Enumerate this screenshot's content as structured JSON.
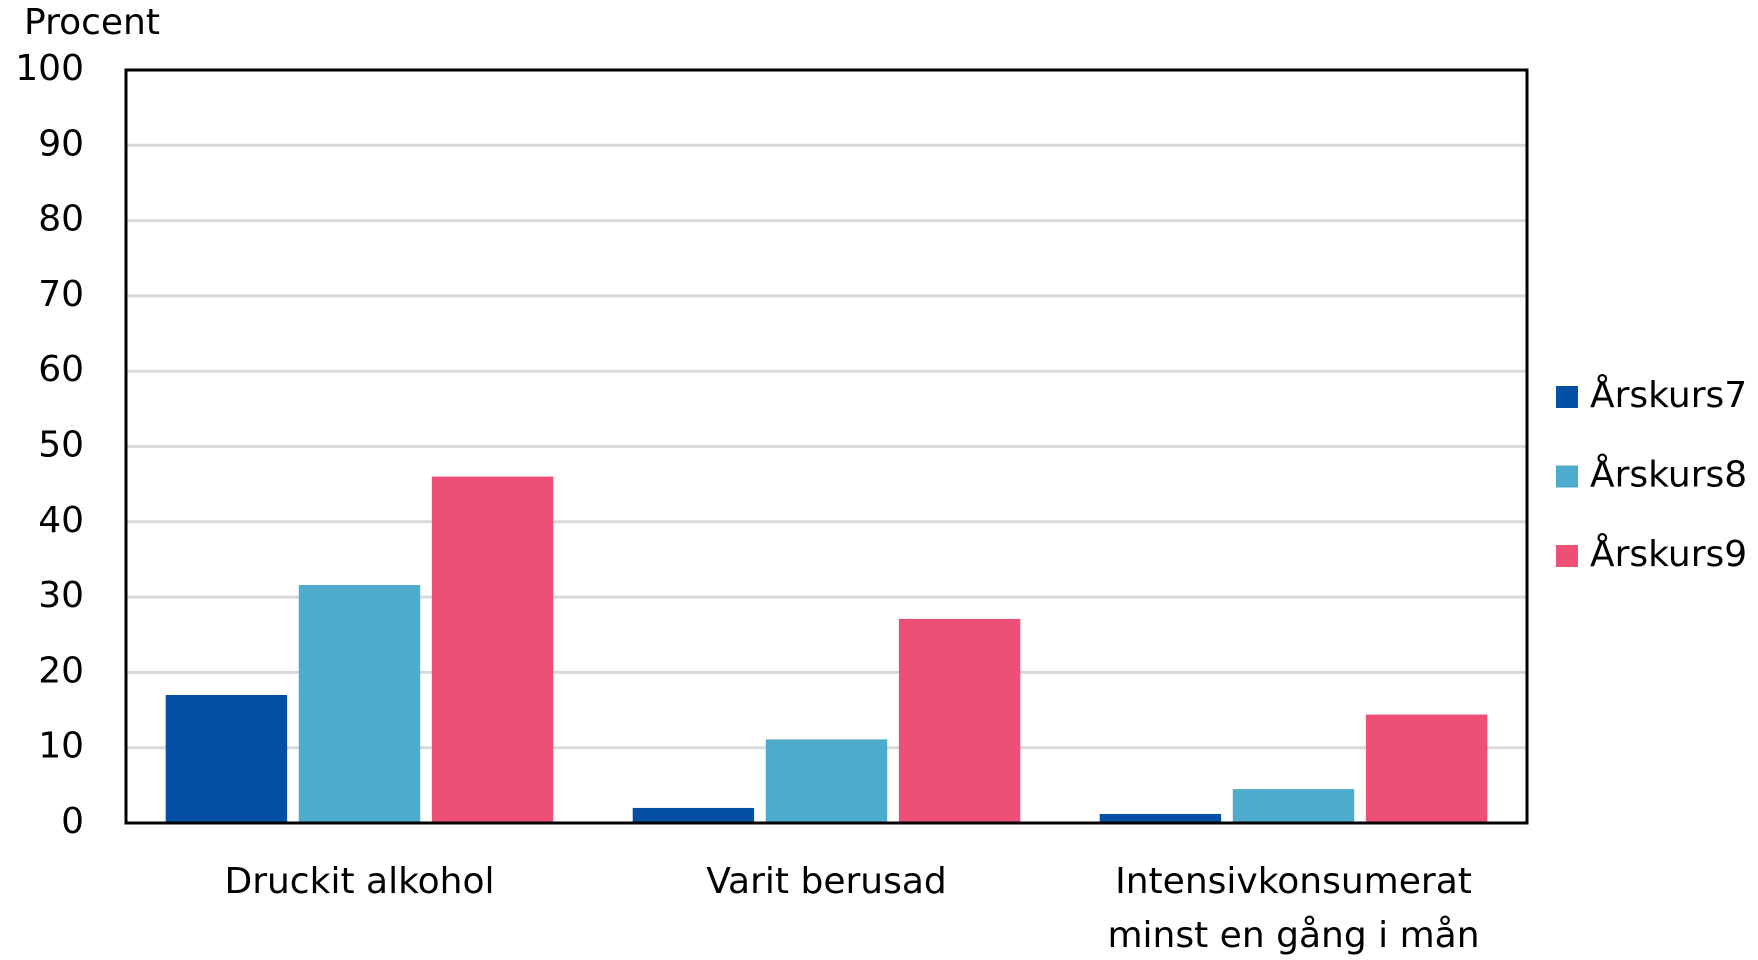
{
  "chart_data": {
    "type": "bar",
    "y_label": "Procent",
    "categories": [
      "Druckit alkohol",
      "Varit berusad",
      "Intensivkonsumerat minst en gång i mån"
    ],
    "series": [
      {
        "name": "Årskurs7",
        "color": "#0450a4",
        "values": [
          17,
          2,
          1.2
        ]
      },
      {
        "name": "Årskurs8",
        "color": "#4dabcb",
        "values": [
          31.6,
          11.1,
          4.5
        ]
      },
      {
        "name": "Årskurs9",
        "color": "#ee4f77",
        "values": [
          46,
          27.1,
          14.4
        ]
      }
    ],
    "ylim": [
      0,
      100
    ],
    "yticks": [
      0,
      10,
      20,
      30,
      40,
      50,
      60,
      70,
      80,
      90,
      100
    ],
    "grid": true,
    "legend": "right"
  }
}
